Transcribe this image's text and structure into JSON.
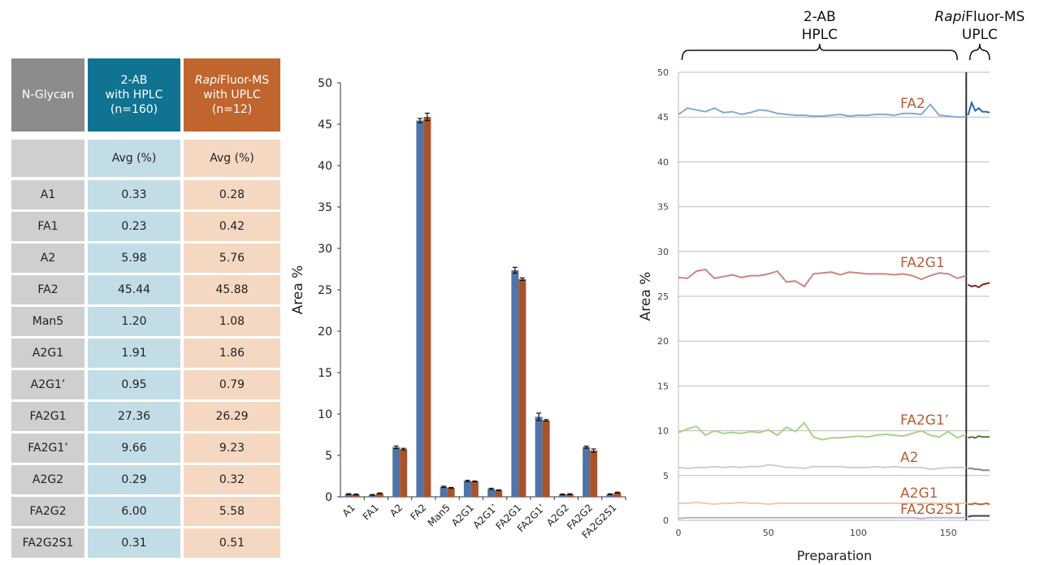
{
  "table": {
    "header": {
      "glycan": "N-Glycan",
      "col1": {
        "line1": "2-AB",
        "line2": "with HPLC",
        "line3": "(n=160)"
      },
      "col2": {
        "line1_italic": "Rapi",
        "line1_rest": "Fluor-MS",
        "line2": "with UPLC",
        "line3": "(n=12)"
      }
    },
    "subheader": {
      "glycan": "",
      "col1": "Avg (%)",
      "col2": "Avg (%)"
    },
    "rows": [
      {
        "glycan": "A1",
        "hplc": "0.33",
        "uplc": "0.28"
      },
      {
        "glycan": "FA1",
        "hplc": "0.23",
        "uplc": "0.42"
      },
      {
        "glycan": "A2",
        "hplc": "5.98",
        "uplc": "5.76"
      },
      {
        "glycan": "FA2",
        "hplc": "45.44",
        "uplc": "45.88"
      },
      {
        "glycan": "Man5",
        "hplc": "1.20",
        "uplc": "1.08"
      },
      {
        "glycan": "A2G1",
        "hplc": "1.91",
        "uplc": "1.86"
      },
      {
        "glycan": "A2G1’",
        "hplc": "0.95",
        "uplc": "0.79"
      },
      {
        "glycan": "FA2G1",
        "hplc": "27.36",
        "uplc": "26.29"
      },
      {
        "glycan": "FA2G1’",
        "hplc": "9.66",
        "uplc": "9.23"
      },
      {
        "glycan": "A2G2",
        "hplc": "0.29",
        "uplc": "0.32"
      },
      {
        "glycan": "FA2G2",
        "hplc": "6.00",
        "uplc": "5.58"
      },
      {
        "glycan": "FA2G2S1",
        "hplc": "0.31",
        "uplc": "0.51"
      }
    ],
    "colors": {
      "glycan_header": "#8c8c8c",
      "hplc_header": "#0f7391",
      "uplc_header": "#c0652e",
      "glycan_cell": "#cfcfcf",
      "hplc_cell": "#c3dde6",
      "uplc_cell": "#f4d8c2"
    }
  },
  "chart_data": [
    {
      "type": "bar",
      "title": "",
      "xlabel": "",
      "ylabel": "Area %",
      "ylim": [
        0,
        50
      ],
      "yticks": [
        "0",
        "5",
        "10",
        "15",
        "20",
        "25",
        "30",
        "35",
        "40",
        "45",
        "50"
      ],
      "categories": [
        "A1",
        "FA1",
        "A2",
        "FA2",
        "Man5",
        "A2G1",
        "A2G1’",
        "FA2G1",
        "FA2G1’",
        "A2G2",
        "FA2G2",
        "FA2G2S1"
      ],
      "series": [
        {
          "values": [
            0.33,
            0.23,
            5.98,
            45.44,
            1.2,
            1.91,
            0.95,
            27.36,
            9.66,
            0.29,
            6.0,
            0.31
          ],
          "errors": [
            0.05,
            0.05,
            0.15,
            0.25,
            0.08,
            0.08,
            0.08,
            0.35,
            0.45,
            0.05,
            0.12,
            0.05
          ],
          "color": "#4f74a8"
        },
        {
          "values": [
            0.28,
            0.42,
            5.76,
            45.88,
            1.08,
            1.86,
            0.79,
            26.29,
            9.23,
            0.32,
            5.58,
            0.51
          ],
          "errors": [
            0.05,
            0.05,
            0.1,
            0.45,
            0.05,
            0.05,
            0.05,
            0.15,
            0.1,
            0.05,
            0.2,
            0.05
          ],
          "color": "#a9532e"
        }
      ],
      "grid": false
    },
    {
      "type": "line",
      "title": "",
      "xlabel": "Preparation",
      "ylabel": "Area %",
      "xlim": [
        0,
        173
      ],
      "ylim": [
        0,
        50
      ],
      "xticks": [
        "0",
        "50",
        "100",
        "150"
      ],
      "yticks": [
        "0",
        "5",
        "10",
        "15",
        "20",
        "25",
        "30",
        "35",
        "40",
        "45",
        "50"
      ],
      "grid": true,
      "divider_x": 160,
      "groups": [
        {
          "line1": "2-AB",
          "line2": "HPLC",
          "range": [
            2,
            155
          ]
        },
        {
          "line1_italic": "Rapi",
          "line1_rest": "Fluor-MS",
          "line2": "UPLC",
          "range": [
            162,
            173
          ]
        }
      ],
      "label_color": "#b5603a",
      "series": [
        {
          "name": "FA2",
          "color_hplc": "#86a8d0",
          "color_uplc": "#2a66ad",
          "hplc": {
            "x_start": 0,
            "x_step": 5,
            "values": [
              45.3,
              46.0,
              45.8,
              45.6,
              46.0,
              45.5,
              45.6,
              45.3,
              45.5,
              45.8,
              45.7,
              45.4,
              45.3,
              45.2,
              45.2,
              45.1,
              45.1,
              45.2,
              45.3,
              45.1,
              45.2,
              45.2,
              45.3,
              45.3,
              45.2,
              45.4,
              45.4,
              45.3,
              46.4,
              45.2,
              45.1,
              45.0,
              45.0
            ]
          },
          "uplc": {
            "x_start": 161,
            "x_step": 2,
            "values": [
              45.2,
              46.6,
              45.7,
              46.0,
              45.6,
              45.6,
              45.5
            ]
          }
        },
        {
          "name": "FA2G1",
          "color_hplc": "#cc8585",
          "color_uplc": "#7a2a2a",
          "hplc": {
            "x_start": 0,
            "x_step": 5,
            "values": [
              27.1,
              27.0,
              27.8,
              28.0,
              27.0,
              27.2,
              27.4,
              27.1,
              27.3,
              27.3,
              27.5,
              27.8,
              26.6,
              26.7,
              26.1,
              27.5,
              27.6,
              27.7,
              27.4,
              27.7,
              27.6,
              27.5,
              27.5,
              27.5,
              27.4,
              27.5,
              27.3,
              26.9,
              27.3,
              27.6,
              27.5,
              27.0,
              27.3
            ]
          },
          "uplc": {
            "x_start": 161,
            "x_step": 2,
            "values": [
              26.3,
              26.1,
              26.2,
              26.0,
              26.3,
              26.4,
              26.5
            ]
          }
        },
        {
          "name": "FA2G1’",
          "color_hplc": "#acd08c",
          "color_uplc": "#4f7a30",
          "hplc": {
            "x_start": 0,
            "x_step": 5,
            "values": [
              9.8,
              10.2,
              10.5,
              9.5,
              10.0,
              9.7,
              9.8,
              9.7,
              9.9,
              9.8,
              10.1,
              9.5,
              10.4,
              9.9,
              10.9,
              9.3,
              9.0,
              9.2,
              9.2,
              9.3,
              9.4,
              9.3,
              9.5,
              9.6,
              9.5,
              9.4,
              9.7,
              10.0,
              9.5,
              9.3,
              9.9,
              9.2,
              9.6
            ]
          },
          "uplc": {
            "x_start": 161,
            "x_step": 2,
            "values": [
              9.2,
              9.3,
              9.2,
              9.4,
              9.3,
              9.3,
              9.3
            ]
          }
        },
        {
          "name": "A2",
          "color_hplc": "#cfcfcf",
          "color_uplc": "#8a8a8a",
          "hplc": {
            "x_start": 0,
            "x_step": 5,
            "values": [
              5.9,
              5.8,
              5.9,
              5.9,
              6.0,
              5.9,
              6.0,
              5.9,
              6.0,
              6.0,
              6.2,
              6.1,
              5.9,
              5.9,
              5.8,
              6.0,
              6.0,
              6.0,
              6.0,
              5.9,
              5.9,
              5.9,
              6.0,
              5.9,
              6.0,
              5.9,
              5.9,
              5.9,
              5.7,
              5.8,
              5.9,
              5.9,
              5.9
            ]
          },
          "uplc": {
            "x_start": 161,
            "x_step": 2,
            "values": [
              5.8,
              5.8,
              5.7,
              5.7,
              5.6,
              5.6,
              5.6
            ]
          }
        },
        {
          "name": "A2G1",
          "color_hplc": "#f4caa8",
          "color_uplc": "#c8602a",
          "hplc": {
            "x_start": 0,
            "x_step": 5,
            "values": [
              1.9,
              1.9,
              2.0,
              1.9,
              1.8,
              1.9,
              1.9,
              2.0,
              1.9,
              1.9,
              1.8,
              1.9,
              1.9,
              1.9,
              1.9,
              1.9,
              1.9,
              1.9,
              1.9,
              1.9,
              1.9,
              1.9,
              1.9,
              1.9,
              1.9,
              1.9,
              1.9,
              1.9,
              1.9,
              1.9,
              1.9,
              1.9,
              1.9
            ]
          },
          "uplc": {
            "x_start": 161,
            "x_step": 2,
            "values": [
              1.8,
              1.8,
              1.9,
              1.8,
              1.8,
              1.9,
              1.8
            ]
          }
        },
        {
          "name": "FA2G2S1",
          "color_hplc": "#bab2d2",
          "color_uplc": "#3a3a6a",
          "hplc": {
            "x_start": 0,
            "x_step": 5,
            "values": [
              0.2,
              0.3,
              0.3,
              0.3,
              0.3,
              0.3,
              0.3,
              0.3,
              0.3,
              0.3,
              0.3,
              0.3,
              0.3,
              0.3,
              0.3,
              0.3,
              0.3,
              0.3,
              0.3,
              0.3,
              0.3,
              0.3,
              0.3,
              0.3,
              0.3,
              0.3,
              0.3,
              0.2,
              0.3,
              0.3,
              0.3,
              0.3,
              0.3
            ]
          },
          "uplc": {
            "x_start": 161,
            "x_step": 2,
            "values": [
              0.4,
              0.5,
              0.5,
              0.5,
              0.5,
              0.5,
              0.5
            ]
          }
        }
      ]
    }
  ]
}
